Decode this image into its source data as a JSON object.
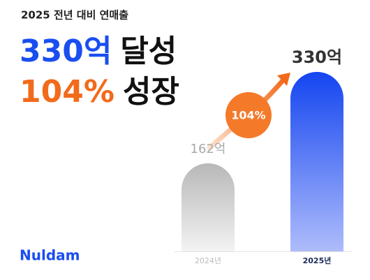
{
  "header": {
    "subtitle": "2025 전년 대비 연매출",
    "line1_highlight": "330억",
    "line1_rest": "달성",
    "line2_highlight": "104%",
    "line2_rest": "성장"
  },
  "brand": "Nuldam",
  "chart_data": {
    "type": "bar",
    "categories": [
      "2024년",
      "2025년"
    ],
    "values": [
      162,
      330
    ],
    "value_labels": [
      "162억",
      "330억"
    ],
    "colors": [
      [
        "#b8b8b8",
        "#f3f3f3"
      ],
      [
        "#1445f0",
        "#aebcfb"
      ]
    ],
    "ylim": [
      0,
      330
    ],
    "annotation": "104%",
    "annotation_color": "#f47a2a"
  }
}
